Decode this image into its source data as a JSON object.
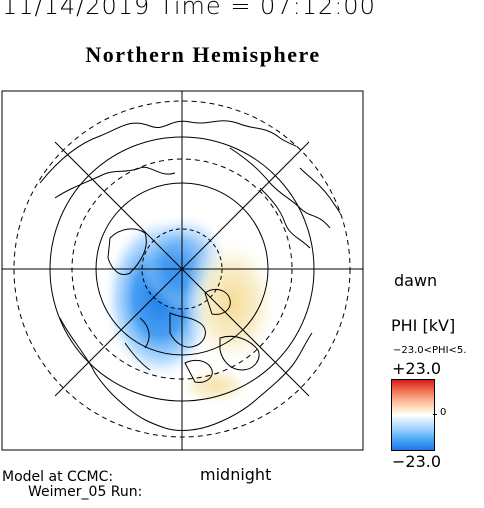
{
  "header": {
    "date_time": "11/14/2019 Time = 07:12:00",
    "title": "Northern Hemisphere"
  },
  "orientation": {
    "dawn_label": "dawn",
    "midnight_label": "midnight"
  },
  "colorbar": {
    "title": "PHI [kV]",
    "range_text": "−23.0<PHI<5.",
    "max_label": "+23.0",
    "zero_label": "0",
    "min_label": "−23.0",
    "min_value": -23.0,
    "max_value": 23.0,
    "colors": {
      "negative": "#1f78e8",
      "zero": "#ffffff",
      "positive": "#d7191c"
    }
  },
  "footer": {
    "model_line1": "Model at CCMC:",
    "model_line2": "Weimer_05 Run:"
  },
  "map": {
    "projection": "polar-stereographic",
    "pole": "north",
    "potential_cells": [
      {
        "sign": "negative",
        "color": "#2b8ef0"
      },
      {
        "sign": "positive",
        "color": "#f5e3a0"
      }
    ]
  }
}
